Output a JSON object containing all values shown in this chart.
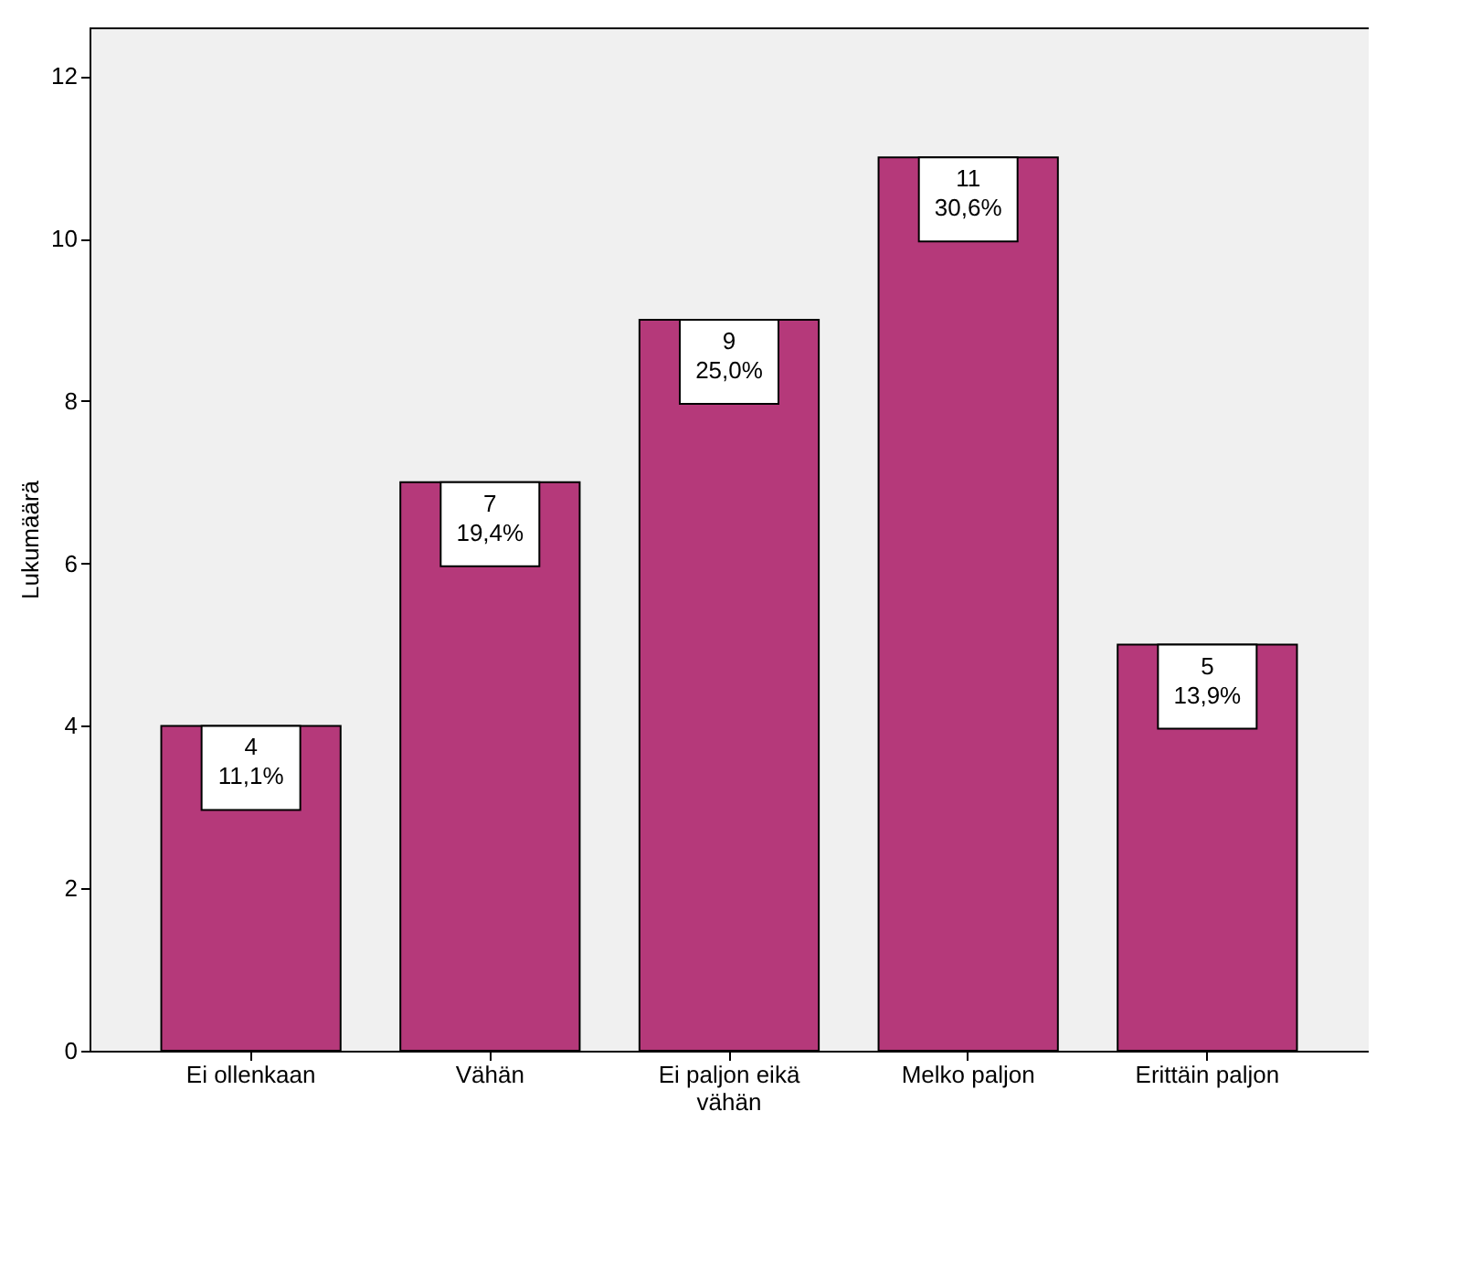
{
  "chart_data": {
    "type": "bar",
    "ylabel": "Lukumäärä",
    "categories": [
      "Ei ollenkaan",
      "Vähän",
      "Ei paljon eikä vähän",
      "Melko paljon",
      "Erittäin paljon"
    ],
    "values": [
      4,
      7,
      9,
      11,
      5
    ],
    "value_labels": [
      "4\n11,1%",
      "7\n19,4%",
      "9\n25,0%",
      "11\n30,6%",
      "5\n13,9%"
    ],
    "color": "#b5397a",
    "ylim": [
      0,
      12.6
    ],
    "yticks": [
      0,
      2,
      4,
      6,
      8,
      10,
      12
    ],
    "grid": false
  }
}
